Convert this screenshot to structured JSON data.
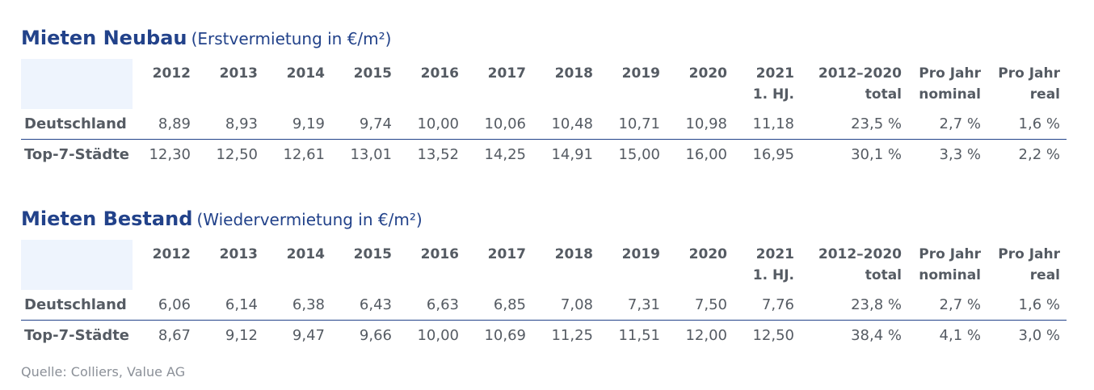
{
  "sections": [
    {
      "title": "Mieten Neubau",
      "subtitle": "(Erstvermietung in €/m²)",
      "headers": [
        "2012",
        "2013",
        "2014",
        "2015",
        "2016",
        "2017",
        "2018",
        "2019",
        "2020",
        [
          "2021",
          "1. HJ."
        ],
        [
          "2012–2020",
          "total"
        ],
        [
          "Pro Jahr",
          "nominal"
        ],
        [
          "Pro Jahr",
          "real"
        ]
      ],
      "rows": [
        {
          "label": "Deutschland",
          "values": [
            "8,89",
            "8,93",
            "9,19",
            "9,74",
            "10,00",
            "10,06",
            "10,48",
            "10,71",
            "10,98",
            "11,18",
            "23,5 %",
            "2,7 %",
            "1,6 %"
          ]
        },
        {
          "label": "Top-7-Städte",
          "values": [
            "12,30",
            "12,50",
            "12,61",
            "13,01",
            "13,52",
            "14,25",
            "14,91",
            "15,00",
            "16,00",
            "16,95",
            "30,1 %",
            "3,3 %",
            "2,2 %"
          ]
        }
      ]
    },
    {
      "title": "Mieten Bestand",
      "subtitle": "(Wiedervermietung in €/m²)",
      "headers": [
        "2012",
        "2013",
        "2014",
        "2015",
        "2016",
        "2017",
        "2018",
        "2019",
        "2020",
        [
          "2021",
          "1. HJ."
        ],
        [
          "2012–2020",
          "total"
        ],
        [
          "Pro Jahr",
          "nominal"
        ],
        [
          "Pro Jahr",
          "real"
        ]
      ],
      "rows": [
        {
          "label": "Deutschland",
          "values": [
            "6,06",
            "6,14",
            "6,38",
            "6,43",
            "6,63",
            "6,85",
            "7,08",
            "7,31",
            "7,50",
            "7,76",
            "23,8 %",
            "2,7 %",
            "1,6 %"
          ]
        },
        {
          "label": "Top-7-Städte",
          "values": [
            "8,67",
            "9,12",
            "9,47",
            "9,66",
            "10,00",
            "10,69",
            "11,25",
            "11,51",
            "12,00",
            "12,50",
            "38,4 %",
            "4,1 %",
            "3,0 %"
          ]
        }
      ]
    }
  ],
  "source": "Quelle: Colliers, Value AG"
}
